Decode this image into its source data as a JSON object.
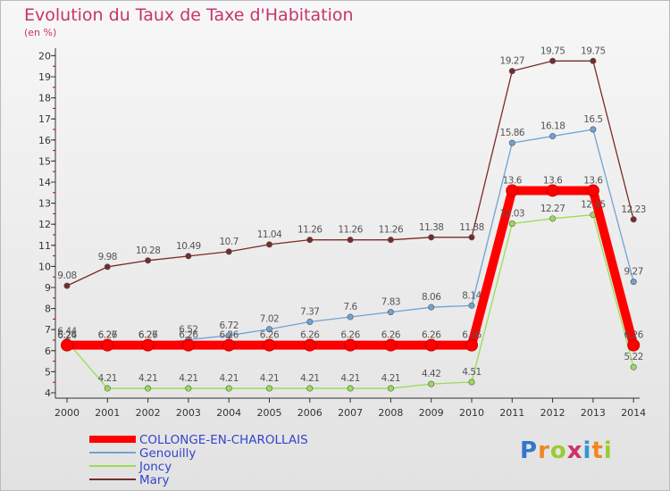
{
  "chart_data": {
    "type": "line",
    "title": "Evolution du Taux de Taxe d'Habitation",
    "unit": "(en %)",
    "x": [
      "2000",
      "2001",
      "2002",
      "2003",
      "2004",
      "2005",
      "2006",
      "2007",
      "2008",
      "2009",
      "2010",
      "2011",
      "2012",
      "2013",
      "2014"
    ],
    "ylim": [
      4,
      20
    ],
    "yticks": [
      4,
      5,
      6,
      7,
      8,
      9,
      10,
      11,
      12,
      13,
      14,
      15,
      16,
      17,
      18,
      19,
      20
    ],
    "grid": false,
    "legend_position": "bottom-left",
    "series": [
      {
        "name": "COLLONGE-EN-CHAROLLAIS",
        "color": "#ff0000",
        "values": [
          6.26,
          6.26,
          6.26,
          6.26,
          6.26,
          6.26,
          6.26,
          6.26,
          6.26,
          6.26,
          6.26,
          13.6,
          13.6,
          13.6,
          6.26
        ],
        "labels": [
          "6.26",
          "6.26",
          "6.26",
          "6.26",
          "6.26",
          "6.26",
          "6.26",
          "6.26",
          "6.26",
          "6.26",
          "6.26",
          "13.6",
          "13.6",
          "13.6",
          "6.26"
        ]
      },
      {
        "name": "Genouilly",
        "color": "#6fa3d4",
        "values": [
          6.24,
          6.27,
          6.27,
          6.52,
          6.72,
          7.02,
          7.37,
          7.6,
          7.83,
          8.06,
          8.14,
          15.86,
          16.18,
          16.5,
          9.27
        ],
        "labels": [
          "6.24",
          "6.27",
          "6.27",
          "6.52",
          "6.72",
          "7.02",
          "7.37",
          "7.6",
          "7.83",
          "8.06",
          "8.14",
          "15.86",
          "16.18",
          "16.5",
          "9.27"
        ]
      },
      {
        "name": "Joncy",
        "color": "#99dd55",
        "values": [
          6.44,
          4.21,
          4.21,
          4.21,
          4.21,
          4.21,
          4.21,
          4.21,
          4.21,
          4.42,
          4.51,
          12.03,
          12.27,
          12.45,
          5.22
        ],
        "labels": [
          "6.44",
          "4.21",
          "4.21",
          "4.21",
          "4.21",
          "4.21",
          "4.21",
          "4.21",
          "4.21",
          "4.42",
          "4.51",
          "12.03",
          "12.27",
          "12.45",
          "5.22"
        ]
      },
      {
        "name": "Mary",
        "color": "#7a2a2a",
        "values": [
          9.08,
          9.98,
          10.28,
          10.49,
          10.7,
          11.04,
          11.26,
          11.26,
          11.26,
          11.38,
          11.38,
          19.27,
          19.75,
          19.75,
          12.23
        ],
        "labels": [
          "9.08",
          "9.98",
          "10.28",
          "10.49",
          "10.7",
          "11.04",
          "11.26",
          "11.26",
          "11.26",
          "11.38",
          "11.38",
          "19.27",
          "19.75",
          "19.75",
          "12.23"
        ]
      }
    ]
  },
  "logo": {
    "text": "Proxiti",
    "colors": [
      "#3377cc",
      "#ee8822",
      "#99cc33",
      "#cc3366",
      "#3399cc",
      "#ee8822",
      "#99cc33"
    ]
  }
}
